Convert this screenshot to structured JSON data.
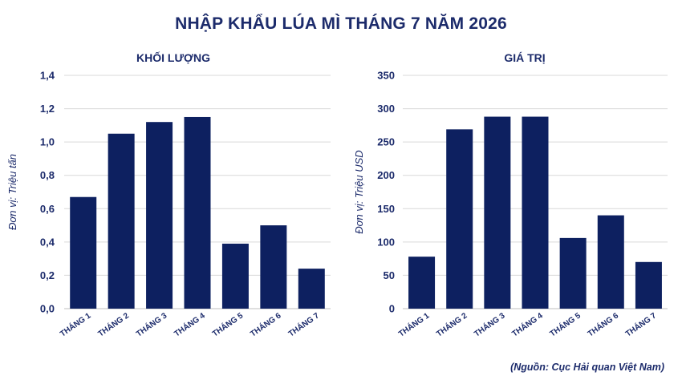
{
  "title": "NHẬP KHẨU LÚA MÌ THÁNG 7 NĂM 2026",
  "source": "(Nguồn: Cục Hải quan Việt Nam)",
  "colors": {
    "bar": "#0d2060",
    "text": "#1c2b6b",
    "grid": "#d9d9d9"
  },
  "chart_data": [
    {
      "type": "bar",
      "title": "KHỐI LƯỢNG",
      "ylabel": "Đơn vị: Triệu tấn",
      "categories": [
        "THÁNG 1",
        "THÁNG 2",
        "THÁNG 3",
        "THÁNG 4",
        "THÁNG 5",
        "THÁNG 6",
        "THÁNG 7"
      ],
      "values": [
        0.67,
        1.05,
        1.12,
        1.15,
        0.39,
        0.5,
        0.24
      ],
      "ylim": [
        0,
        1.4
      ],
      "yticks": [
        0,
        0.2,
        0.4,
        0.6,
        0.8,
        1.0,
        1.2,
        1.4
      ],
      "ytick_labels": [
        "0,0",
        "0,2",
        "0,4",
        "0,6",
        "0,8",
        "1,0",
        "1,2",
        "1,4"
      ],
      "grid": true
    },
    {
      "type": "bar",
      "title": "GIÁ TRỊ",
      "ylabel": "Đơn vị: Triệu USD",
      "categories": [
        "THÁNG 1",
        "THÁNG 2",
        "THÁNG 3",
        "THÁNG 4",
        "THÁNG 5",
        "THÁNG 6",
        "THÁNG 7"
      ],
      "values": [
        78,
        269,
        288,
        288,
        106,
        140,
        70
      ],
      "ylim": [
        0,
        350
      ],
      "yticks": [
        0,
        50,
        100,
        150,
        200,
        250,
        300,
        350
      ],
      "ytick_labels": [
        "0",
        "50",
        "100",
        "150",
        "200",
        "250",
        "300",
        "350"
      ],
      "grid": true
    }
  ]
}
